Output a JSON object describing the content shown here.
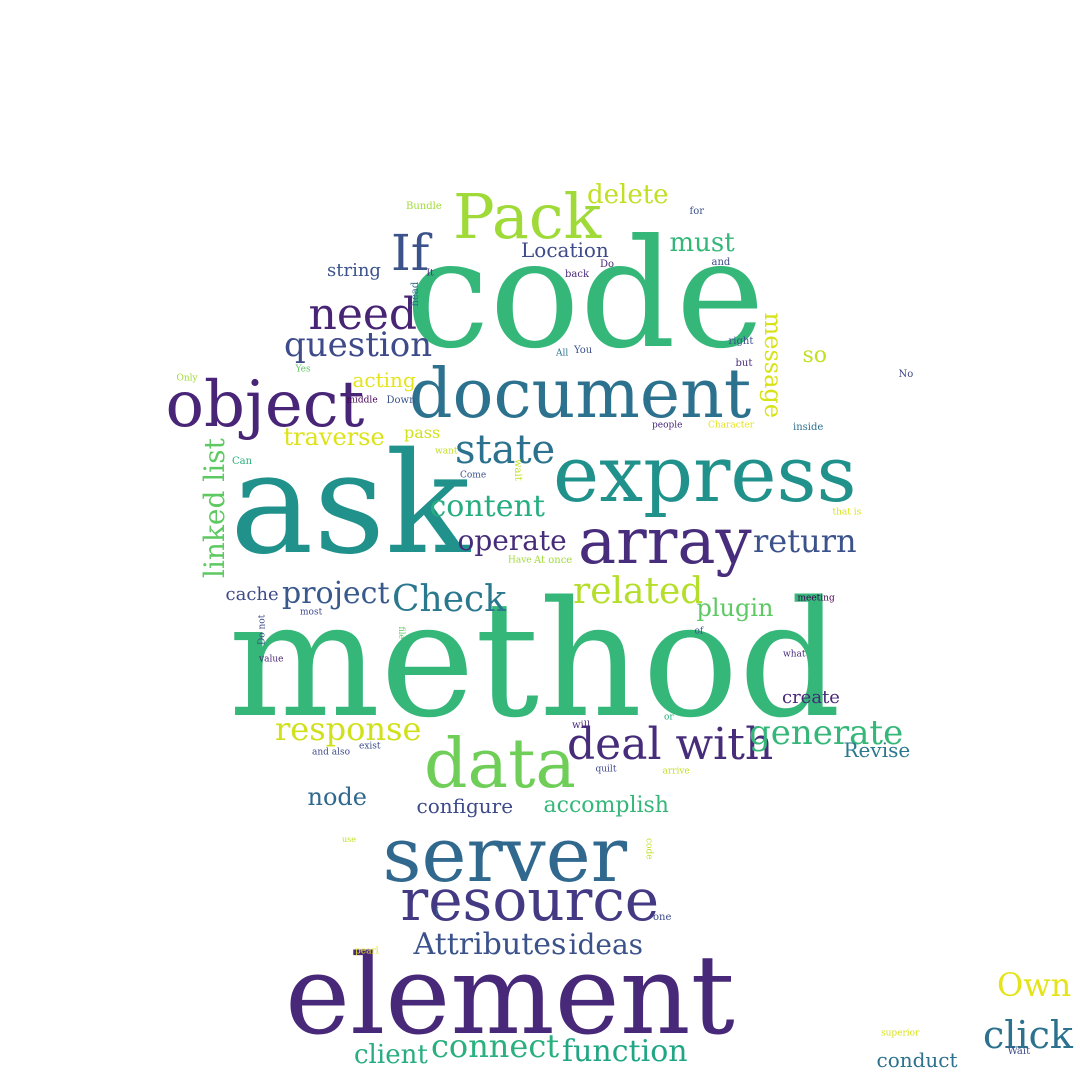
{
  "colors": {
    "background": "#ffffff",
    "palette": [
      "#440154",
      "#472c7a",
      "#3b518b",
      "#2c718e",
      "#21908d",
      "#27ad81",
      "#5cc863",
      "#aadc32",
      "#fde725"
    ]
  },
  "words": [
    {
      "text": "code",
      "color": "#35b779"
    },
    {
      "text": "method",
      "color": "#35b779"
    },
    {
      "text": "ask",
      "color": "#21918c"
    },
    {
      "text": "element",
      "color": "#482878"
    },
    {
      "text": "express",
      "color": "#21918c"
    },
    {
      "text": "document",
      "color": "#2c728e"
    },
    {
      "text": "server",
      "color": "#31688e"
    },
    {
      "text": "resource",
      "color": "#443983"
    },
    {
      "text": "array",
      "color": "#472d7b"
    },
    {
      "text": "data",
      "color": "#6ece58"
    },
    {
      "text": "deal with",
      "color": "#472c7a"
    },
    {
      "text": "object",
      "color": "#482576"
    },
    {
      "text": "Pack",
      "color": "#a0da39"
    },
    {
      "text": "If",
      "color": "#3b528b"
    },
    {
      "text": "need",
      "color": "#482475"
    },
    {
      "text": "question",
      "color": "#3e4a89"
    },
    {
      "text": "state",
      "color": "#2c728e"
    },
    {
      "text": "content",
      "color": "#27ad81"
    },
    {
      "text": "operate",
      "color": "#472c7a"
    },
    {
      "text": "return",
      "color": "#3b528b"
    },
    {
      "text": "related",
      "color": "#b5de2b"
    },
    {
      "text": "project",
      "color": "#38598c"
    },
    {
      "text": "Check",
      "color": "#2a788e"
    },
    {
      "text": "response",
      "color": "#d0e11c"
    },
    {
      "text": "generate",
      "color": "#35b779"
    },
    {
      "text": "Attributes",
      "color": "#3b528b"
    },
    {
      "text": "ideas",
      "color": "#3b528b"
    },
    {
      "text": "connect",
      "color": "#2ab07f"
    },
    {
      "text": "function",
      "color": "#21a685"
    },
    {
      "text": "client",
      "color": "#27ad81"
    },
    {
      "text": "node",
      "color": "#31688e"
    },
    {
      "text": "configure",
      "color": "#3e4a89"
    },
    {
      "text": "accomplish",
      "color": "#35b779"
    },
    {
      "text": "linked list",
      "color": "#5ec962"
    },
    {
      "text": "traverse",
      "color": "#dde318"
    },
    {
      "text": "acting",
      "color": "#e5e419"
    },
    {
      "text": "delete",
      "color": "#c2df23"
    },
    {
      "text": "must",
      "color": "#35b779"
    },
    {
      "text": "so",
      "color": "#c2df23"
    },
    {
      "text": "message",
      "color": "#d8e219"
    },
    {
      "text": "string",
      "color": "#3b528b"
    },
    {
      "text": "Location",
      "color": "#3e4a89"
    },
    {
      "text": "plugin",
      "color": "#5ec962"
    },
    {
      "text": "cache",
      "color": "#3e4a89"
    },
    {
      "text": "create",
      "color": "#482878"
    },
    {
      "text": "Revise",
      "color": "#2a788e"
    },
    {
      "text": "pass",
      "color": "#d0e11c"
    },
    {
      "text": "Own",
      "color": "#e5e419"
    },
    {
      "text": "click",
      "color": "#2c728e"
    },
    {
      "text": "conduct",
      "color": "#2c728e"
    },
    {
      "text": "Bundle",
      "color": "#a0da39"
    },
    {
      "text": "for",
      "color": "#3b528b"
    },
    {
      "text": "and",
      "color": "#3e4a89"
    },
    {
      "text": "It",
      "color": "#482878"
    },
    {
      "text": "head",
      "color": "#31688e"
    },
    {
      "text": "back",
      "color": "#472c7a"
    },
    {
      "text": "Do",
      "color": "#482878"
    },
    {
      "text": "right",
      "color": "#3b528b"
    },
    {
      "text": "All",
      "color": "#2c728e"
    },
    {
      "text": "You",
      "color": "#3b528b"
    },
    {
      "text": "but",
      "color": "#472c7a"
    },
    {
      "text": "No",
      "color": "#3e4a89"
    },
    {
      "text": "Only",
      "color": "#a0da39"
    },
    {
      "text": "Yes",
      "color": "#5ec962"
    },
    {
      "text": "middle",
      "color": "#440154"
    },
    {
      "text": "Down",
      "color": "#3b528b"
    },
    {
      "text": "people",
      "color": "#482878"
    },
    {
      "text": "Character",
      "color": "#e5e419"
    },
    {
      "text": "inside",
      "color": "#2c728e"
    },
    {
      "text": "Can",
      "color": "#2ab07f"
    },
    {
      "text": "want",
      "color": "#c2df23"
    },
    {
      "text": "Come",
      "color": "#3b528b"
    },
    {
      "text": "wait",
      "color": "#c2df23"
    },
    {
      "text": "that is",
      "color": "#d8e219"
    },
    {
      "text": "Have",
      "color": "#a0da39"
    },
    {
      "text": "At once",
      "color": "#a0da39"
    },
    {
      "text": "most",
      "color": "#3e4a89"
    },
    {
      "text": "meeting",
      "color": "#440154"
    },
    {
      "text": "of",
      "color": "#3b528b"
    },
    {
      "text": "Do not",
      "color": "#3e4a89"
    },
    {
      "text": "file",
      "color": "#5ec962"
    },
    {
      "text": "value",
      "color": "#482878"
    },
    {
      "text": "what",
      "color": "#472c7a"
    },
    {
      "text": "will",
      "color": "#482878"
    },
    {
      "text": "or",
      "color": "#2ab07f"
    },
    {
      "text": "and also",
      "color": "#3e4a89"
    },
    {
      "text": "exist",
      "color": "#3e4a89"
    },
    {
      "text": "quilt",
      "color": "#3e4a89"
    },
    {
      "text": "arrive",
      "color": "#c2df23"
    },
    {
      "text": "use",
      "color": "#c2df23"
    },
    {
      "text": "code",
      "color": "#c2df23"
    },
    {
      "text": "I",
      "color": "#2a788e"
    },
    {
      "text": "one",
      "color": "#3e4a89"
    },
    {
      "text": "pearl",
      "color": "#e5e419"
    },
    {
      "text": "superior",
      "color": "#d8e219"
    },
    {
      "text": "Wait",
      "color": "#3e4a89"
    }
  ]
}
